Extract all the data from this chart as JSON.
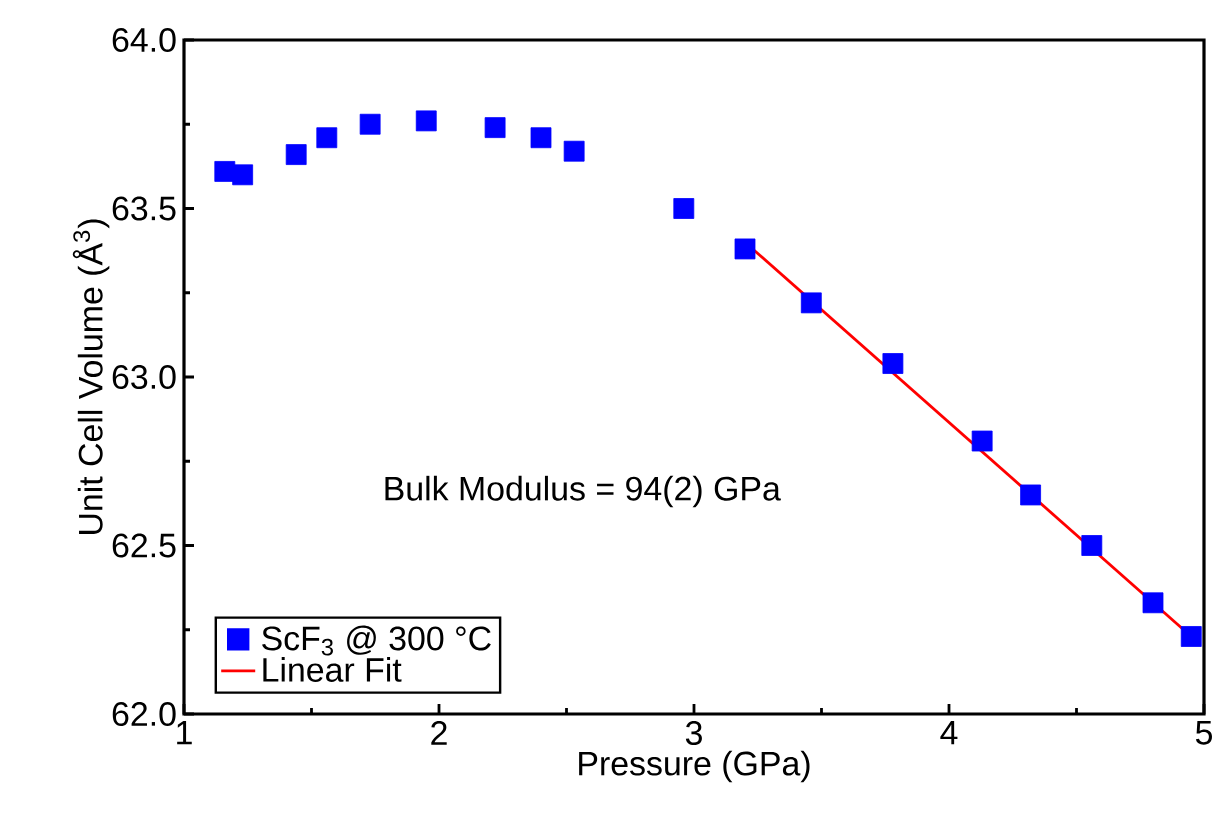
{
  "chart_data": {
    "type": "scatter",
    "xlabel": "Pressure (GPa)",
    "ylabel": "Unit Cell Volume (Å$^{3}$)",
    "xlim": [
      1,
      5
    ],
    "ylim": [
      62,
      64
    ],
    "xticks": [
      1,
      2,
      3,
      4,
      5
    ],
    "yticks": [
      {
        "value": 62,
        "label": "62.0"
      },
      {
        "value": 62.5,
        "label": "62.5"
      },
      {
        "value": 63,
        "label": "63.0"
      },
      {
        "value": 63.5,
        "label": "63.5"
      },
      {
        "value": 64,
        "label": "64.0"
      }
    ],
    "legend": "bottom left",
    "grid": false,
    "annotations": [
      "Bulk Modulus = 94(2) GPa"
    ],
    "series": [
      {
        "name": "ScF$_{3}$ @ 300 °C",
        "marker": "square",
        "color": "#0000ff",
        "x": [
          1.16,
          1.23,
          1.44,
          1.56,
          1.73,
          1.95,
          2.22,
          2.4,
          2.53,
          2.96,
          3.2,
          3.46,
          3.78,
          4.13,
          4.32,
          4.56,
          4.8,
          4.95
        ],
        "values": [
          63.61,
          63.6,
          63.66,
          63.71,
          63.75,
          63.76,
          63.74,
          63.71,
          63.67,
          63.5,
          63.38,
          63.22,
          63.04,
          62.81,
          62.65,
          62.5,
          62.33,
          62.23
        ]
      },
      {
        "name": "Linear Fit",
        "type": "line",
        "color": "#ff0000",
        "x": [
          3.2,
          4.98
        ],
        "values": [
          63.4,
          62.21
        ]
      }
    ]
  }
}
